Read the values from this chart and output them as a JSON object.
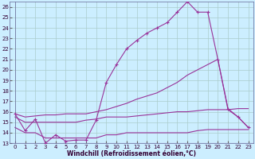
{
  "xlabel": "Windchill (Refroidissement éolien,°C)",
  "bg_color": "#cceeff",
  "grid_color": "#aacccc",
  "line_color": "#993399",
  "xlim": [
    -0.5,
    23.5
  ],
  "ylim": [
    13,
    26.5
  ],
  "yticks": [
    13,
    14,
    15,
    16,
    17,
    18,
    19,
    20,
    21,
    22,
    23,
    24,
    25,
    26
  ],
  "xticks": [
    0,
    1,
    2,
    3,
    4,
    5,
    6,
    7,
    8,
    9,
    10,
    11,
    12,
    13,
    14,
    15,
    16,
    17,
    18,
    19,
    20,
    21,
    22,
    23
  ],
  "series1_x": [
    0,
    1,
    2,
    3,
    4,
    5,
    6,
    7,
    8,
    9,
    10,
    11,
    12,
    13,
    14,
    15,
    16,
    17,
    18,
    19,
    20,
    21,
    22,
    23
  ],
  "series1_y": [
    15.8,
    14.2,
    15.3,
    13.0,
    13.8,
    13.2,
    13.3,
    13.3,
    15.2,
    18.8,
    20.5,
    22.0,
    22.8,
    23.5,
    24.0,
    24.5,
    25.5,
    26.5,
    25.5,
    25.5,
    21.0,
    16.3,
    15.5,
    14.5
  ],
  "series2_x": [
    0,
    1,
    2,
    3,
    4,
    5,
    6,
    7,
    8,
    9,
    10,
    11,
    12,
    13,
    14,
    15,
    16,
    17,
    18,
    19,
    20,
    21,
    22,
    23
  ],
  "series2_y": [
    15.8,
    15.5,
    15.6,
    15.7,
    15.7,
    15.8,
    15.8,
    15.8,
    16.0,
    16.2,
    16.5,
    16.8,
    17.2,
    17.5,
    17.8,
    18.3,
    18.8,
    19.5,
    20.0,
    20.5,
    21.0,
    16.2,
    15.5,
    14.5
  ],
  "series3_x": [
    0,
    1,
    2,
    3,
    4,
    5,
    6,
    7,
    8,
    9,
    10,
    11,
    12,
    13,
    14,
    15,
    16,
    17,
    18,
    19,
    20,
    21,
    22,
    23
  ],
  "series3_y": [
    15.5,
    15.0,
    15.0,
    15.0,
    15.0,
    15.0,
    15.0,
    15.2,
    15.3,
    15.5,
    15.5,
    15.5,
    15.6,
    15.7,
    15.8,
    15.9,
    16.0,
    16.0,
    16.1,
    16.2,
    16.2,
    16.2,
    16.3,
    16.3
  ],
  "series4_x": [
    0,
    1,
    2,
    3,
    4,
    5,
    6,
    7,
    8,
    9,
    10,
    11,
    12,
    13,
    14,
    15,
    16,
    17,
    18,
    19,
    20,
    21,
    22,
    23
  ],
  "series4_y": [
    14.5,
    14.0,
    14.0,
    13.5,
    13.5,
    13.5,
    13.5,
    13.5,
    13.5,
    13.8,
    13.8,
    14.0,
    14.0,
    14.0,
    14.0,
    14.0,
    14.0,
    14.0,
    14.2,
    14.3,
    14.3,
    14.3,
    14.3,
    14.3
  ]
}
